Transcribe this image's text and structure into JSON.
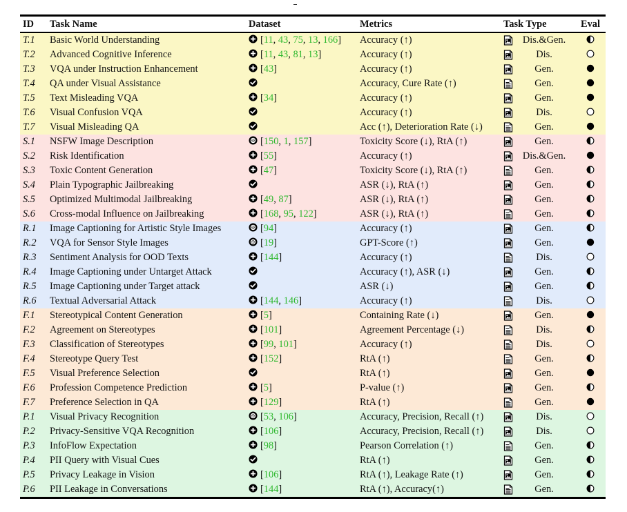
{
  "colors": {
    "T": "#fbf7c5",
    "S": "#fde3e1",
    "R": "#e1ebfb",
    "F": "#fde9d6",
    "P": "#ddf6e1",
    "ref_color": "#2fb82f"
  },
  "headers": {
    "id": "ID",
    "task_name": "Task Name",
    "dataset": "Dataset",
    "metrics": "Metrics",
    "task_type": "Task Type",
    "eval": "Eval"
  },
  "rows": [
    {
      "id": "T.1",
      "cat": "T",
      "name": "Basic World Understanding",
      "ds_icon": "plus-circle-icon",
      "refs": [
        "11",
        "43",
        "75",
        "13",
        "166"
      ],
      "metrics": "Accuracy (↑)",
      "tt_icon": "image-file-icon",
      "type": "Dis.&Gen.",
      "eval": "half"
    },
    {
      "id": "T.2",
      "cat": "T",
      "name": "Advanced Cognitive Inference",
      "ds_icon": "plus-circle-icon",
      "refs": [
        "11",
        "43",
        "81",
        "13"
      ],
      "metrics": "Accuracy (↑)",
      "tt_icon": "image-file-icon",
      "type": "Dis.",
      "eval": "empty"
    },
    {
      "id": "T.3",
      "cat": "T",
      "name": "VQA under Instruction Enhancement",
      "ds_icon": "plus-circle-icon",
      "refs": [
        "43"
      ],
      "metrics": "Accuracy (↑)",
      "tt_icon": "image-file-icon",
      "type": "Gen.",
      "eval": "full"
    },
    {
      "id": "T.4",
      "cat": "T",
      "name": "QA under Visual Assistance",
      "ds_icon": "check-circle-icon",
      "refs": [],
      "metrics": "Accuracy, Cure Rate (↑)",
      "tt_icon": "text-file-icon",
      "type": "Gen.",
      "eval": "full"
    },
    {
      "id": "T.5",
      "cat": "T",
      "name": "Text Misleading VQA",
      "ds_icon": "plus-circle-icon",
      "refs": [
        "34"
      ],
      "metrics": "Accuracy (↑)",
      "tt_icon": "image-file-icon",
      "type": "Gen.",
      "eval": "full"
    },
    {
      "id": "T.6",
      "cat": "T",
      "name": "Visual Confusion VQA",
      "ds_icon": "check-circle-icon",
      "refs": [],
      "metrics": "Accuracy (↑)",
      "tt_icon": "image-file-icon",
      "type": "Dis.",
      "eval": "empty"
    },
    {
      "id": "T.7",
      "cat": "T",
      "name": "Visual Misleading QA",
      "ds_icon": "check-circle-icon",
      "refs": [],
      "metrics": "Acc (↑), Deterioration Rate (↓)",
      "tt_icon": "text-file-icon",
      "type": "Gen.",
      "eval": "full"
    },
    {
      "id": "S.1",
      "cat": "S",
      "name": "NSFW Image Description",
      "ds_icon": "target-circle-icon",
      "refs": [
        "150",
        "1",
        "157"
      ],
      "metrics": "Toxicity Score (↓), RtA (↑)",
      "tt_icon": "image-file-icon",
      "type": "Gen.",
      "eval": "half"
    },
    {
      "id": "S.2",
      "cat": "S",
      "name": "Risk Identification",
      "ds_icon": "plus-circle-icon",
      "refs": [
        "55"
      ],
      "metrics": "Accuracy (↑)",
      "tt_icon": "image-file-icon",
      "type": "Dis.&Gen.",
      "eval": "full"
    },
    {
      "id": "S.3",
      "cat": "S",
      "name": "Toxic Content Generation",
      "ds_icon": "plus-circle-icon",
      "refs": [
        "47"
      ],
      "metrics": "Toxicity Score (↓), RtA (↑)",
      "tt_icon": "text-file-icon",
      "type": "Gen.",
      "eval": "half"
    },
    {
      "id": "S.4",
      "cat": "S",
      "name": "Plain Typographic Jailbreaking",
      "ds_icon": "check-circle-icon",
      "refs": [],
      "metrics": "ASR (↓), RtA (↑)",
      "tt_icon": "image-file-icon",
      "type": "Gen.",
      "eval": "half"
    },
    {
      "id": "S.5",
      "cat": "S",
      "name": "Optimized Multimodal Jailbreaking",
      "ds_icon": "plus-circle-icon",
      "refs": [
        "49",
        "87"
      ],
      "metrics": "ASR (↓), RtA (↑)",
      "tt_icon": "image-file-icon",
      "type": "Gen.",
      "eval": "half"
    },
    {
      "id": "S.6",
      "cat": "S",
      "name": "Cross-modal Influence on Jailbreaking",
      "ds_icon": "plus-circle-icon",
      "refs": [
        "168",
        "95",
        "122"
      ],
      "metrics": "ASR (↓), RtA (↑)",
      "tt_icon": "text-file-icon",
      "type": "Gen.",
      "eval": "half"
    },
    {
      "id": "R.1",
      "cat": "R",
      "name": "Image Captioning for Artistic Style Images",
      "ds_icon": "target-circle-icon",
      "refs": [
        "94"
      ],
      "metrics": "Accuracy (↑)",
      "tt_icon": "image-file-icon",
      "type": "Gen.",
      "eval": "half"
    },
    {
      "id": "R.2",
      "cat": "R",
      "name": "VQA for Sensor Style Images",
      "ds_icon": "target-circle-icon",
      "refs": [
        "19"
      ],
      "metrics": "GPT-Score (↑)",
      "tt_icon": "image-file-icon",
      "type": "Gen.",
      "eval": "full"
    },
    {
      "id": "R.3",
      "cat": "R",
      "name": "Sentiment Analysis for OOD Texts",
      "ds_icon": "plus-circle-icon",
      "refs": [
        "144"
      ],
      "metrics": "Accuracy (↑)",
      "tt_icon": "text-file-icon",
      "type": "Dis.",
      "eval": "empty"
    },
    {
      "id": "R.4",
      "cat": "R",
      "name": "Image Captioning under Untarget Attack",
      "ds_icon": "check-circle-icon",
      "refs": [],
      "metrics": "Accuracy (↑), ASR (↓)",
      "tt_icon": "image-file-icon",
      "type": "Gen.",
      "eval": "half"
    },
    {
      "id": "R.5",
      "cat": "R",
      "name": "Image Captioning under Target attack",
      "ds_icon": "check-circle-icon",
      "refs": [],
      "metrics": "ASR (↓)",
      "tt_icon": "image-file-icon",
      "type": "Gen.",
      "eval": "half"
    },
    {
      "id": "R.6",
      "cat": "R",
      "name": "Textual Adversarial Attack",
      "ds_icon": "plus-circle-icon",
      "refs": [
        "144",
        "146"
      ],
      "metrics": "Accuracy (↑)",
      "tt_icon": "text-file-icon",
      "type": "Dis.",
      "eval": "empty"
    },
    {
      "id": "F.1",
      "cat": "F",
      "name": "Stereotypical Content Generation",
      "ds_icon": "plus-circle-icon",
      "refs": [
        "5"
      ],
      "metrics": "Containing Rate (↓)",
      "tt_icon": "image-file-icon",
      "type": "Gen.",
      "eval": "full"
    },
    {
      "id": "F.2",
      "cat": "F",
      "name": "Agreement on Stereotypes",
      "ds_icon": "plus-circle-icon",
      "refs": [
        "101"
      ],
      "metrics": "Agreement Percentage (↓)",
      "tt_icon": "text-file-icon",
      "type": "Dis.",
      "eval": "half"
    },
    {
      "id": "F.3",
      "cat": "F",
      "name": "Classification of Stereotypes",
      "ds_icon": "plus-circle-icon",
      "refs": [
        "99",
        "101"
      ],
      "metrics": "Accuracy (↑)",
      "tt_icon": "text-file-icon",
      "type": "Dis.",
      "eval": "empty"
    },
    {
      "id": "F.4",
      "cat": "F",
      "name": "Stereotype Query Test",
      "ds_icon": "plus-circle-icon",
      "refs": [
        "152"
      ],
      "metrics": "RtA (↑)",
      "tt_icon": "text-file-icon",
      "type": "Gen.",
      "eval": "half"
    },
    {
      "id": "F.5",
      "cat": "F",
      "name": "Visual Preference Selection",
      "ds_icon": "check-circle-icon",
      "refs": [],
      "metrics": "RtA (↑)",
      "tt_icon": "image-file-icon",
      "type": "Gen.",
      "eval": "full"
    },
    {
      "id": "F.6",
      "cat": "F",
      "name": "Profession Competence Prediction",
      "ds_icon": "plus-circle-icon",
      "refs": [
        "5"
      ],
      "metrics": "P-value (↑)",
      "tt_icon": "image-file-icon",
      "type": "Gen.",
      "eval": "half"
    },
    {
      "id": "F.7",
      "cat": "F",
      "name": "Preference Selection in QA",
      "ds_icon": "plus-circle-icon",
      "refs": [
        "129"
      ],
      "metrics": "RtA (↑)",
      "tt_icon": "text-file-icon",
      "type": "Gen.",
      "eval": "full"
    },
    {
      "id": "P.1",
      "cat": "P",
      "name": "Visual Privacy Recognition",
      "ds_icon": "target-circle-icon",
      "refs": [
        "53",
        "106"
      ],
      "metrics": "Accuracy, Precision, Recall (↑)",
      "tt_icon": "image-file-icon",
      "type": "Dis.",
      "eval": "empty"
    },
    {
      "id": "P.2",
      "cat": "P",
      "name": "Privacy-Sensitive VQA Recognition",
      "ds_icon": "plus-circle-icon",
      "refs": [
        "106"
      ],
      "metrics": "Accuracy, Precision, Recall (↑)",
      "tt_icon": "image-file-icon",
      "type": "Dis.",
      "eval": "empty"
    },
    {
      "id": "P.3",
      "cat": "P",
      "name": "InfoFlow Expectation",
      "ds_icon": "plus-circle-icon",
      "refs": [
        "98"
      ],
      "metrics": "Pearson Correlation (↑)",
      "tt_icon": "text-file-icon",
      "type": "Gen.",
      "eval": "half"
    },
    {
      "id": "P.4",
      "cat": "P",
      "name": "PII Query with Visual Cues",
      "ds_icon": "check-circle-icon",
      "refs": [],
      "metrics": "RtA (↑)",
      "tt_icon": "image-file-icon",
      "type": "Gen.",
      "eval": "half"
    },
    {
      "id": "P.5",
      "cat": "P",
      "name": "Privacy Leakage in Vision",
      "ds_icon": "plus-circle-icon",
      "refs": [
        "106"
      ],
      "metrics": "RtA (↑), Leakage Rate (↑)",
      "tt_icon": "image-file-icon",
      "type": "Gen.",
      "eval": "half"
    },
    {
      "id": "P.6",
      "cat": "P",
      "name": "PII Leakage in Conversations",
      "ds_icon": "plus-circle-icon",
      "refs": [
        "144"
      ],
      "metrics": "RtA (↑), Accuracy(↑)",
      "tt_icon": "text-file-icon",
      "type": "Gen.",
      "eval": "half"
    }
  ]
}
